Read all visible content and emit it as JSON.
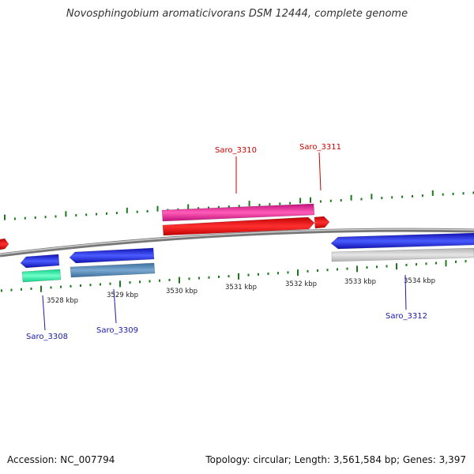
{
  "title": "Novosphingobium aromaticivorans DSM 12444, complete genome",
  "footer": {
    "accession": "Accession: NC_007794",
    "info": "Topology: circular; Length: 3,561,584 bp; Genes: 3,397"
  },
  "colors": {
    "backbone": "#8a8a8a",
    "tick": "#1a7a1a",
    "label_top": "#cc0000",
    "label_bottom": "#1a1aa8"
  },
  "scale": [
    {
      "label": "3528 kbp"
    },
    {
      "label": "3529 kbp"
    },
    {
      "label": "3530 kbp"
    },
    {
      "label": "3531 kbp"
    },
    {
      "label": "3532 kbp"
    },
    {
      "label": "3533 kbp"
    },
    {
      "label": "3534 kbp"
    }
  ],
  "genes": [
    {
      "name": "Saro_3308",
      "color": "#1f2fd8",
      "strand": "minus"
    },
    {
      "name": "Saro_3309",
      "color": "#1f2fd8",
      "strand": "minus"
    },
    {
      "name": "Saro_3310",
      "color": "#e8168c",
      "strand": "plus"
    },
    {
      "name": "Saro_3311",
      "color": "#e81010",
      "strand": "plus"
    },
    {
      "name": "Saro_3312",
      "color": "#1f2fd8",
      "strand": "minus"
    }
  ]
}
